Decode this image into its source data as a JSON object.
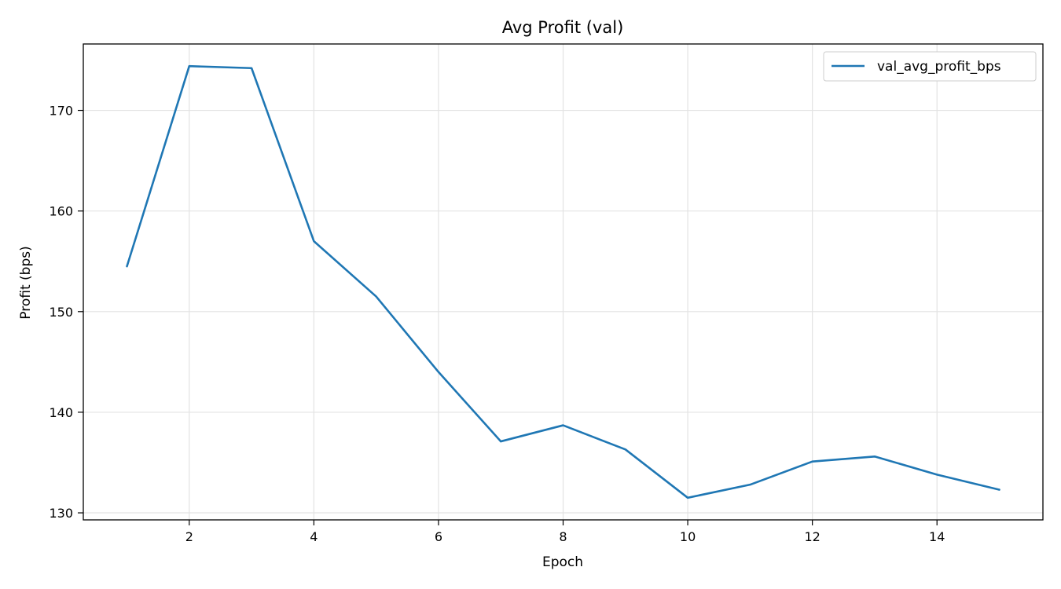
{
  "chart_data": {
    "type": "line",
    "title": "Avg Profit (val)",
    "xlabel": "Epoch",
    "ylabel": "Profit (bps)",
    "xlim": [
      0.3,
      15.7
    ],
    "ylim": [
      129.3,
      176.6
    ],
    "xticks": [
      2,
      4,
      6,
      8,
      10,
      12,
      14
    ],
    "yticks": [
      130,
      140,
      150,
      160,
      170
    ],
    "grid": true,
    "legend_position": "top-right",
    "series": [
      {
        "name": "val_avg_profit_bps",
        "color": "#1f77b4",
        "x": [
          1,
          2,
          3,
          4,
          5,
          6,
          7,
          8,
          9,
          10,
          11,
          12,
          13,
          14,
          15
        ],
        "y": [
          154.5,
          174.4,
          174.2,
          157.0,
          151.5,
          144.0,
          137.1,
          138.7,
          136.3,
          131.5,
          132.8,
          135.1,
          135.6,
          133.8,
          132.3
        ]
      }
    ]
  }
}
